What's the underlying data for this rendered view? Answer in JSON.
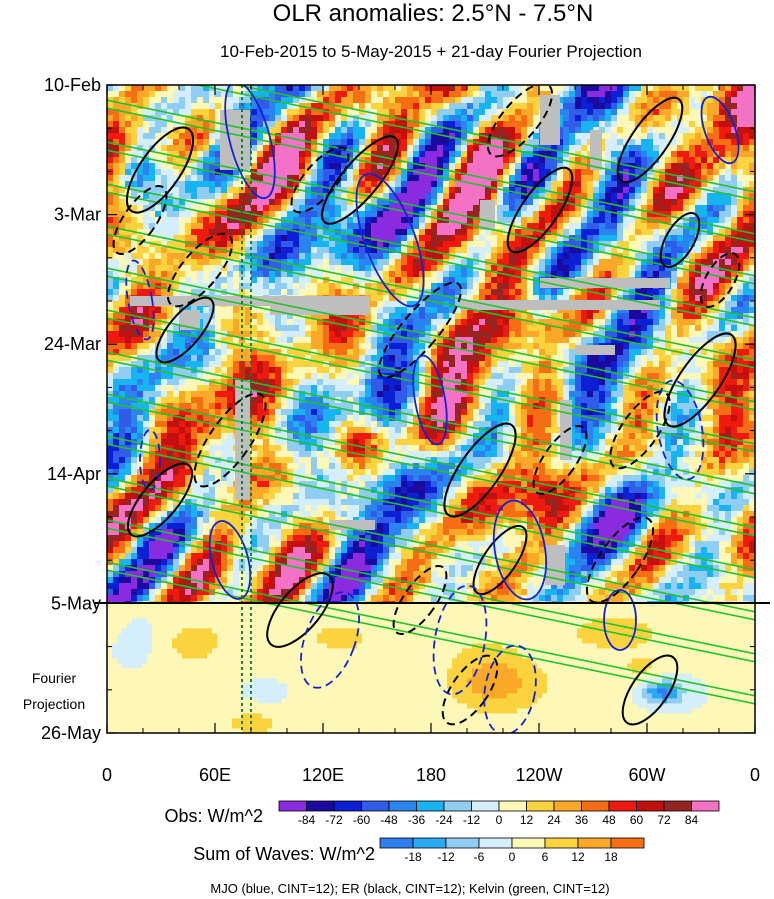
{
  "chart_data": {
    "type": "heatmap",
    "title": "OLR anomalies: 2.5°N - 7.5°N",
    "subtitle": "10-Feb-2015 to 5-May-2015 + 21-day Fourier Projection",
    "xaxis": {
      "tick_labels": [
        "0",
        "60E",
        "120E",
        "180",
        "120W",
        "60W",
        "0"
      ],
      "tick_values_deg_east": [
        0,
        60,
        120,
        180,
        240,
        300,
        360
      ],
      "range": [
        0,
        360
      ]
    },
    "yaxis": {
      "tick_labels": [
        "10-Feb",
        "3-Mar",
        "24-Mar",
        "14-Apr",
        "5-May",
        "26-May"
      ],
      "range": [
        "2015-02-10",
        "2015-05-26"
      ],
      "reversed": true,
      "projection_start": "2015-05-05",
      "projection_label": [
        "Fourier",
        "Projection"
      ]
    },
    "colorbars": [
      {
        "label": "Obs: W/m^2",
        "levels": [
          -84,
          -72,
          -60,
          -48,
          -36,
          -24,
          -12,
          0,
          12,
          24,
          36,
          48,
          60,
          72,
          84
        ],
        "colors": [
          "#8a2be2",
          "#1a0a9e",
          "#0b1fd4",
          "#2f5ce8",
          "#2a84f0",
          "#18b4f2",
          "#8fcdf2",
          "#d4eefb",
          "#fdf7b8",
          "#fbd33f",
          "#f9a828",
          "#f56e13",
          "#ee1a10",
          "#c1100d",
          "#942521",
          "#f472c6"
        ]
      },
      {
        "label": "Sum of Waves: W/m^2",
        "levels": [
          -18,
          -12,
          -6,
          0,
          6,
          12,
          18
        ],
        "colors": [
          "#2f7ff0",
          "#2aa8f2",
          "#8fcdf2",
          "#d4eefb",
          "#fdf7b8",
          "#fbd33f",
          "#f9a828",
          "#f56e13"
        ]
      }
    ],
    "overlays": [
      {
        "name": "MJO",
        "color": "blue",
        "cint": 12
      },
      {
        "name": "ER",
        "color": "black",
        "cint": 12
      },
      {
        "name": "Kelvin",
        "color": "green",
        "cint": 12
      }
    ],
    "reference_lines_deg_east": [
      75,
      80
    ],
    "missing_data_color": "#bebebe"
  },
  "footer": "MJO (blue, CINT=12); ER (black, CINT=12); Kelvin (green, CINT=12)"
}
